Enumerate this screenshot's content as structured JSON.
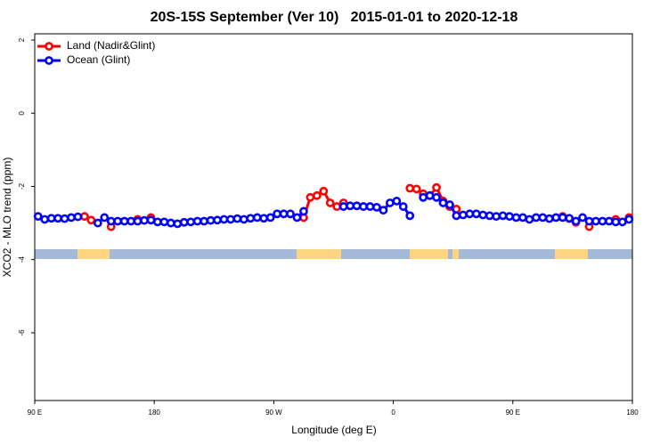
{
  "chart_data": {
    "type": "line",
    "title": "20S-15S September (Ver 10)   2015-01-01 to 2020-12-18",
    "x_label": "Longitude (deg E)",
    "y_label": "XCO2 - MLO trend (ppm)",
    "x": [
      92.5,
      97.5,
      102.5,
      107.5,
      112.5,
      117.5,
      122.5,
      127.5,
      132.5,
      137.5,
      142.5,
      147.5,
      152.5,
      157.5,
      162.5,
      167.5,
      172.5,
      177.5,
      182.5,
      187.5,
      192.5,
      197.5,
      202.5,
      207.5,
      212.5,
      217.5,
      222.5,
      227.5,
      232.5,
      237.5,
      242.5,
      247.5,
      252.5,
      257.5,
      262.5,
      267.5,
      272.5,
      277.5,
      282.5,
      287.5,
      292.5,
      297.5,
      302.5,
      307.5,
      312.5,
      317.5,
      322.5,
      327.5,
      332.5,
      337.5,
      342.5,
      347.5,
      352.5,
      357.5,
      362.5,
      367.5,
      372.5,
      377.5,
      382.5,
      387.5,
      392.5,
      397.5,
      402.5,
      407.5,
      412.5,
      417.5,
      422.5,
      427.5,
      432.5,
      437.5,
      442.5,
      447.5,
      452.5,
      457.5,
      462.5,
      467.5,
      472.5,
      477.5,
      482.5,
      487.5,
      492.5,
      497.5,
      502.5,
      507.5,
      512.5,
      517.5,
      522.5,
      527.5,
      532.5,
      537.5
    ],
    "series": [
      {
        "name": "Land (Nadir&Glint)",
        "color": "#ff0000",
        "values": [
          null,
          null,
          null,
          null,
          null,
          null,
          null,
          -2.82,
          -2.92,
          null,
          null,
          -3.1,
          null,
          null,
          null,
          -2.9,
          null,
          -2.85,
          null,
          null,
          null,
          null,
          null,
          null,
          null,
          null,
          null,
          null,
          null,
          null,
          null,
          null,
          null,
          null,
          null,
          null,
          null,
          null,
          null,
          null,
          -2.85,
          -2.3,
          -2.25,
          -2.13,
          -2.45,
          -2.55,
          -2.45,
          null,
          null,
          null,
          null,
          null,
          null,
          null,
          null,
          null,
          -2.05,
          -2.07,
          -2.2,
          -2.25,
          -2.03,
          -2.4,
          -2.55,
          -2.62,
          null,
          null,
          null,
          null,
          null,
          null,
          null,
          null,
          null,
          null,
          null,
          null,
          null,
          null,
          null,
          -2.82,
          -2.88,
          -2.98,
          null,
          -3.1,
          null,
          null,
          null,
          -2.9,
          null,
          -2.85
        ]
      },
      {
        "name": "Ocean (Glint)",
        "color": "#0000ff",
        "values": [
          -2.82,
          -2.9,
          -2.87,
          -2.87,
          -2.88,
          -2.85,
          -2.83,
          null,
          null,
          -3.0,
          -2.85,
          -2.95,
          -2.95,
          -2.95,
          -2.95,
          -2.95,
          -2.93,
          -2.92,
          -2.97,
          -2.97,
          -3.0,
          -3.02,
          -2.98,
          -2.97,
          -2.95,
          -2.95,
          -2.93,
          -2.92,
          -2.9,
          -2.9,
          -2.88,
          -2.9,
          -2.87,
          -2.85,
          -2.87,
          -2.85,
          -2.75,
          -2.75,
          -2.75,
          -2.85,
          -2.68,
          null,
          null,
          null,
          null,
          null,
          -2.55,
          -2.53,
          -2.53,
          -2.55,
          -2.55,
          -2.57,
          -2.65,
          -2.45,
          -2.4,
          -2.55,
          -2.8,
          null,
          -2.3,
          -2.25,
          -2.3,
          -2.45,
          -2.5,
          -2.8,
          -2.78,
          -2.75,
          -2.75,
          -2.78,
          -2.8,
          -2.82,
          -2.8,
          -2.82,
          -2.85,
          -2.85,
          -2.9,
          -2.85,
          -2.85,
          -2.88,
          -2.85,
          -2.85,
          -2.87,
          -2.95,
          -2.85,
          -2.95,
          -2.95,
          -2.95,
          -2.95,
          -2.97,
          -2.97,
          -2.9
        ]
      }
    ],
    "xlim": [
      90,
      540
    ],
    "xticks": [
      {
        "value": 90,
        "label": "90 E"
      },
      {
        "value": 180,
        "label": "180"
      },
      {
        "value": 270,
        "label": "90 W"
      },
      {
        "value": 360,
        "label": "0"
      },
      {
        "value": 450,
        "label": "90 E"
      },
      {
        "value": 540,
        "label": "180"
      }
    ],
    "ylim": [
      -7.85,
      2.17
    ],
    "yticks": [
      2,
      0,
      -2,
      -4,
      -6
    ],
    "legend": "top-left"
  }
}
